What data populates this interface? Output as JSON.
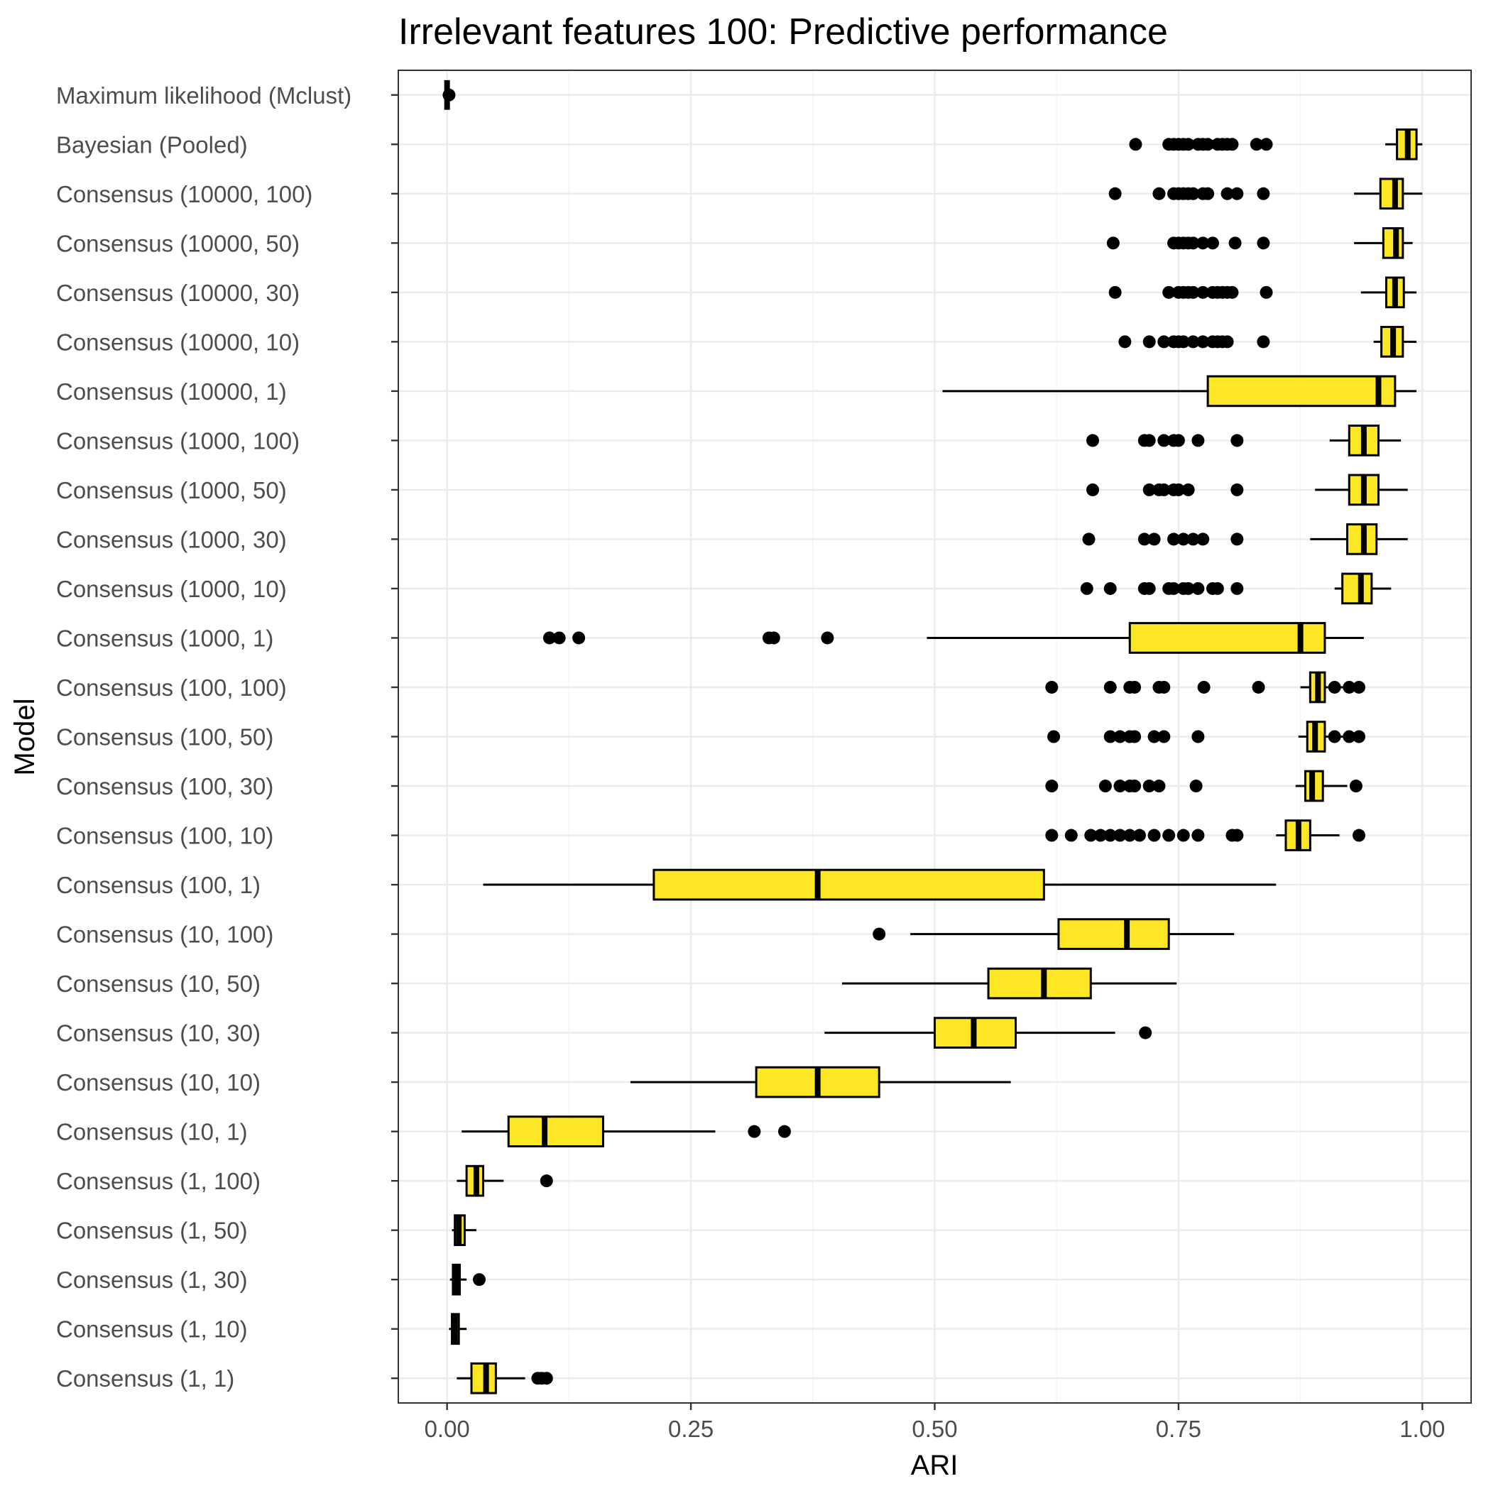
{
  "chart_data": {
    "type": "boxplot",
    "orientation": "horizontal",
    "title": "Irrelevant features 100: Predictive performance",
    "xlabel": "ARI",
    "ylabel": "Model",
    "xlim": [
      -0.05,
      1.05
    ],
    "x_ticks": [
      0,
      0.25,
      0.5,
      0.75,
      1.0
    ],
    "x_tick_labels": [
      "0.00",
      "0.25",
      "0.50",
      "0.75",
      "1.00"
    ],
    "grid": true,
    "box_fill": "#FDE725",
    "box_stroke": "#000000",
    "outlier_color": "#000000",
    "categories": [
      {
        "label": "Maximum likelihood (Mclust)",
        "whisker_low": 0.0,
        "q1": 0.0,
        "median": 0.0,
        "q3": 0.0,
        "whisker_high": 0.0,
        "outliers": [
          0.002
        ]
      },
      {
        "label": "Bayesian (Pooled)",
        "whisker_low": 0.962,
        "q1": 0.974,
        "median": 0.985,
        "q3": 0.994,
        "whisker_high": 1.0,
        "outliers": [
          0.706,
          0.74,
          0.745,
          0.75,
          0.755,
          0.76,
          0.77,
          0.775,
          0.78,
          0.79,
          0.795,
          0.8,
          0.805,
          0.83,
          0.84
        ]
      },
      {
        "label": "Consensus (10000, 100)",
        "whisker_low": 0.93,
        "q1": 0.957,
        "median": 0.972,
        "q3": 0.98,
        "whisker_high": 1.0,
        "outliers": [
          0.685,
          0.73,
          0.745,
          0.75,
          0.755,
          0.76,
          0.765,
          0.775,
          0.78,
          0.8,
          0.81,
          0.837
        ]
      },
      {
        "label": "Consensus (10000, 50)",
        "whisker_low": 0.93,
        "q1": 0.96,
        "median": 0.973,
        "q3": 0.98,
        "whisker_high": 0.99,
        "outliers": [
          0.683,
          0.745,
          0.75,
          0.755,
          0.76,
          0.765,
          0.775,
          0.785,
          0.808,
          0.837
        ]
      },
      {
        "label": "Consensus (10000, 30)",
        "whisker_low": 0.937,
        "q1": 0.963,
        "median": 0.972,
        "q3": 0.981,
        "whisker_high": 0.994,
        "outliers": [
          0.685,
          0.74,
          0.75,
          0.755,
          0.76,
          0.765,
          0.775,
          0.785,
          0.79,
          0.795,
          0.8,
          0.805,
          0.84
        ]
      },
      {
        "label": "Consensus (10000, 10)",
        "whisker_low": 0.95,
        "q1": 0.958,
        "median": 0.97,
        "q3": 0.98,
        "whisker_high": 0.994,
        "outliers": [
          0.695,
          0.72,
          0.735,
          0.745,
          0.75,
          0.755,
          0.765,
          0.775,
          0.785,
          0.79,
          0.795,
          0.8,
          0.837
        ]
      },
      {
        "label": "Consensus (10000, 1)",
        "whisker_low": 0.508,
        "q1": 0.78,
        "median": 0.955,
        "q3": 0.972,
        "whisker_high": 0.994,
        "outliers": []
      },
      {
        "label": "Consensus (1000, 100)",
        "whisker_low": 0.905,
        "q1": 0.925,
        "median": 0.94,
        "q3": 0.955,
        "whisker_high": 0.978,
        "outliers": [
          0.662,
          0.715,
          0.72,
          0.735,
          0.745,
          0.75,
          0.77,
          0.81
        ]
      },
      {
        "label": "Consensus (1000, 50)",
        "whisker_low": 0.89,
        "q1": 0.925,
        "median": 0.94,
        "q3": 0.955,
        "whisker_high": 0.985,
        "outliers": [
          0.662,
          0.72,
          0.73,
          0.735,
          0.745,
          0.75,
          0.76,
          0.81
        ]
      },
      {
        "label": "Consensus (1000, 30)",
        "whisker_low": 0.885,
        "q1": 0.923,
        "median": 0.94,
        "q3": 0.953,
        "whisker_high": 0.985,
        "outliers": [
          0.658,
          0.715,
          0.725,
          0.745,
          0.755,
          0.765,
          0.775,
          0.81
        ]
      },
      {
        "label": "Consensus (1000, 10)",
        "whisker_low": 0.91,
        "q1": 0.918,
        "median": 0.937,
        "q3": 0.948,
        "whisker_high": 0.968,
        "outliers": [
          0.656,
          0.68,
          0.715,
          0.72,
          0.74,
          0.745,
          0.755,
          0.76,
          0.77,
          0.785,
          0.79,
          0.81
        ]
      },
      {
        "label": "Consensus (1000, 1)",
        "whisker_low": 0.492,
        "q1": 0.7,
        "median": 0.875,
        "q3": 0.9,
        "whisker_high": 0.94,
        "outliers": [
          0.105,
          0.115,
          0.135,
          0.33,
          0.335,
          0.39
        ]
      },
      {
        "label": "Consensus (100, 100)",
        "whisker_low": 0.875,
        "q1": 0.885,
        "median": 0.893,
        "q3": 0.9,
        "whisker_high": 0.94,
        "outliers": [
          0.62,
          0.68,
          0.7,
          0.705,
          0.73,
          0.735,
          0.776,
          0.832,
          0.91,
          0.925,
          0.935
        ]
      },
      {
        "label": "Consensus (100, 50)",
        "whisker_low": 0.873,
        "q1": 0.882,
        "median": 0.89,
        "q3": 0.9,
        "whisker_high": 0.935,
        "outliers": [
          0.622,
          0.68,
          0.69,
          0.7,
          0.705,
          0.725,
          0.735,
          0.77,
          0.91,
          0.925,
          0.935
        ]
      },
      {
        "label": "Consensus (100, 30)",
        "whisker_low": 0.87,
        "q1": 0.88,
        "median": 0.887,
        "q3": 0.898,
        "whisker_high": 0.923,
        "outliers": [
          0.62,
          0.675,
          0.69,
          0.7,
          0.705,
          0.72,
          0.73,
          0.768,
          0.932
        ]
      },
      {
        "label": "Consensus (100, 10)",
        "whisker_low": 0.85,
        "q1": 0.86,
        "median": 0.873,
        "q3": 0.885,
        "whisker_high": 0.915,
        "outliers": [
          0.62,
          0.64,
          0.66,
          0.67,
          0.68,
          0.69,
          0.7,
          0.71,
          0.725,
          0.74,
          0.755,
          0.77,
          0.805,
          0.81,
          0.935
        ]
      },
      {
        "label": "Consensus (100, 1)",
        "whisker_low": 0.037,
        "q1": 0.212,
        "median": 0.38,
        "q3": 0.612,
        "whisker_high": 0.85,
        "outliers": []
      },
      {
        "label": "Consensus (10, 100)",
        "whisker_low": 0.475,
        "q1": 0.627,
        "median": 0.697,
        "q3": 0.74,
        "whisker_high": 0.807,
        "outliers": [
          0.443
        ]
      },
      {
        "label": "Consensus (10, 50)",
        "whisker_low": 0.405,
        "q1": 0.555,
        "median": 0.612,
        "q3": 0.66,
        "whisker_high": 0.748,
        "outliers": []
      },
      {
        "label": "Consensus (10, 30)",
        "whisker_low": 0.387,
        "q1": 0.5,
        "median": 0.54,
        "q3": 0.583,
        "whisker_high": 0.685,
        "outliers": [
          0.716
        ]
      },
      {
        "label": "Consensus (10, 10)",
        "whisker_low": 0.188,
        "q1": 0.317,
        "median": 0.38,
        "q3": 0.443,
        "whisker_high": 0.578,
        "outliers": []
      },
      {
        "label": "Consensus (10, 1)",
        "whisker_low": 0.015,
        "q1": 0.063,
        "median": 0.1,
        "q3": 0.16,
        "whisker_high": 0.275,
        "outliers": [
          0.315,
          0.346
        ]
      },
      {
        "label": "Consensus (1, 100)",
        "whisker_low": 0.01,
        "q1": 0.02,
        "median": 0.03,
        "q3": 0.037,
        "whisker_high": 0.058,
        "outliers": [
          0.102
        ]
      },
      {
        "label": "Consensus (1, 50)",
        "whisker_low": 0.005,
        "q1": 0.008,
        "median": 0.012,
        "q3": 0.018,
        "whisker_high": 0.03,
        "outliers": []
      },
      {
        "label": "Consensus (1, 30)",
        "whisker_low": 0.003,
        "q1": 0.006,
        "median": 0.009,
        "q3": 0.013,
        "whisker_high": 0.02,
        "outliers": [
          0.033
        ]
      },
      {
        "label": "Consensus (1, 10)",
        "whisker_low": 0.002,
        "q1": 0.005,
        "median": 0.008,
        "q3": 0.012,
        "whisker_high": 0.02,
        "outliers": []
      },
      {
        "label": "Consensus (1, 1)",
        "whisker_low": 0.01,
        "q1": 0.025,
        "median": 0.04,
        "q3": 0.05,
        "whisker_high": 0.08,
        "outliers": [
          0.093,
          0.097,
          0.102
        ]
      }
    ]
  }
}
